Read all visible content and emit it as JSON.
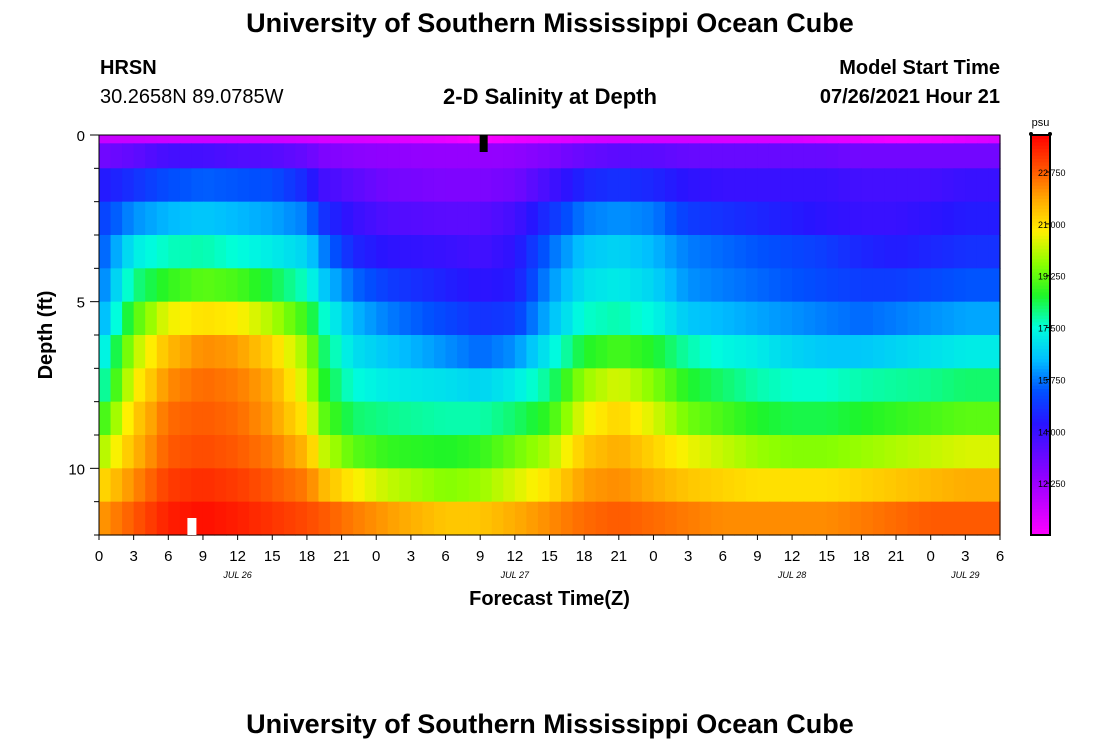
{
  "page": {
    "title_top": "University of Southern Mississippi Ocean Cube",
    "title_bottom": "University of Southern Mississippi Ocean Cube",
    "station": "HRSN",
    "coords": "30.2658N  89.0785W",
    "model_label": "Model Start Time",
    "model_time": "07/26/2021 Hour 21"
  },
  "chart_data": {
    "type": "heatmap",
    "title": "2-D Salinity at Depth",
    "xlabel": "Forecast Time(Z)",
    "ylabel": "Depth (ft)",
    "x_tick_labels": [
      "0",
      "3",
      "6",
      "9",
      "12",
      "15",
      "18",
      "21",
      "0",
      "3",
      "6",
      "9",
      "12",
      "15",
      "18",
      "21",
      "0",
      "3",
      "6",
      "9",
      "12",
      "15",
      "18",
      "21",
      "0",
      "3",
      "6"
    ],
    "x_range_hours": [
      0,
      78
    ],
    "date_labels": [
      {
        "label": "JUL 26",
        "hour": 12
      },
      {
        "label": "JUL 27",
        "hour": 36
      },
      {
        "label": "JUL 28",
        "hour": 60
      },
      {
        "label": "JUL 29",
        "hour": 75
      }
    ],
    "y_tick_labels": [
      "0",
      "5",
      "10"
    ],
    "y_ticks_values": [
      0,
      5,
      10
    ],
    "y_range_ft": [
      0,
      12
    ],
    "depth_levels_ft": [
      0,
      0.5,
      1.5,
      2.5,
      3.5,
      4.5,
      5.5,
      6.5,
      7.5,
      8.5,
      9.5,
      10.5,
      11.5
    ],
    "colorbar": {
      "unit": "psu",
      "min": 10.5,
      "max": 24.0,
      "ticks": [
        "22.750",
        "21.000",
        "19.250",
        "17.500",
        "15.750",
        "14.000",
        "12.250"
      ],
      "tick_values": [
        22.75,
        21.0,
        19.25,
        17.5,
        15.75,
        14.0,
        12.25
      ]
    },
    "markers": [
      {
        "name": "surface-marker",
        "hour": 33.3,
        "color": "#000000"
      },
      {
        "name": "bottom-marker",
        "hour": 8,
        "color": "#ffffff"
      }
    ],
    "salinity_psu_profiles": [
      {
        "hour": 0,
        "values": [
          11.5,
          13.0,
          14.3,
          15.0,
          15.3,
          15.6,
          16.0,
          16.8,
          17.4,
          18.6,
          19.8,
          21.0,
          22.0
        ]
      },
      {
        "hour": 3,
        "values": [
          11.5,
          13.3,
          14.8,
          16.0,
          17.2,
          18.0,
          19.0,
          20.0,
          20.6,
          21.2,
          21.6,
          22.2,
          22.8
        ]
      },
      {
        "hour": 6,
        "values": [
          11.4,
          13.8,
          15.3,
          16.4,
          17.7,
          18.8,
          20.6,
          21.6,
          22.2,
          22.6,
          22.8,
          23.2,
          23.6
        ]
      },
      {
        "hour": 9,
        "values": [
          11.4,
          13.8,
          15.5,
          16.6,
          17.8,
          19.2,
          21.0,
          22.2,
          22.6,
          22.8,
          23.0,
          23.4,
          23.8
        ]
      },
      {
        "hour": 12,
        "values": [
          11.4,
          13.6,
          15.4,
          16.4,
          17.5,
          19.0,
          20.8,
          22.0,
          22.4,
          22.6,
          22.8,
          23.2,
          23.6
        ]
      },
      {
        "hour": 15,
        "values": [
          11.4,
          13.5,
          15.3,
          16.2,
          17.2,
          18.4,
          20.0,
          21.2,
          21.8,
          22.0,
          22.4,
          22.8,
          23.3
        ]
      },
      {
        "hour": 18,
        "values": [
          11.3,
          13.2,
          14.6,
          15.8,
          16.8,
          17.6,
          18.8,
          19.8,
          20.2,
          20.8,
          21.6,
          22.4,
          23.0
        ]
      },
      {
        "hour": 19.5,
        "values": [
          11.2,
          12.8,
          13.8,
          14.8,
          15.8,
          16.6,
          17.6,
          18.2,
          18.6,
          19.2,
          20.2,
          21.6,
          22.8
        ]
      },
      {
        "hour": 22,
        "values": [
          11.2,
          12.6,
          13.4,
          14.0,
          14.6,
          15.6,
          16.4,
          17.0,
          17.5,
          18.2,
          19.2,
          20.8,
          22.4
        ]
      },
      {
        "hour": 25,
        "values": [
          11.1,
          12.5,
          13.0,
          13.6,
          14.2,
          15.0,
          15.8,
          16.6,
          17.2,
          18.0,
          18.8,
          20.2,
          22.0
        ]
      },
      {
        "hour": 30,
        "values": [
          10.9,
          12.4,
          12.8,
          13.4,
          14.0,
          14.5,
          15.2,
          16.0,
          17.0,
          17.8,
          18.6,
          19.6,
          21.4
        ]
      },
      {
        "hour": 33,
        "values": [
          10.6,
          12.4,
          12.8,
          13.4,
          13.8,
          14.2,
          14.8,
          15.6,
          16.8,
          17.8,
          18.8,
          19.8,
          21.4
        ]
      },
      {
        "hour": 36,
        "values": [
          10.8,
          12.5,
          13.0,
          13.8,
          14.2,
          14.4,
          15.0,
          16.0,
          17.2,
          18.2,
          19.4,
          20.4,
          21.8
        ]
      },
      {
        "hour": 39,
        "values": [
          11.0,
          12.8,
          13.8,
          14.8,
          15.6,
          16.0,
          16.4,
          17.2,
          18.0,
          18.8,
          20.0,
          21.0,
          22.2
        ]
      },
      {
        "hour": 42,
        "values": [
          11.2,
          13.2,
          14.6,
          15.8,
          16.6,
          17.0,
          17.6,
          18.6,
          19.8,
          20.6,
          21.4,
          22.0,
          22.6
        ]
      },
      {
        "hour": 45,
        "values": [
          11.3,
          13.4,
          14.8,
          16.0,
          16.8,
          17.2,
          17.8,
          19.0,
          20.4,
          21.2,
          21.8,
          22.2,
          22.8
        ]
      },
      {
        "hour": 48,
        "values": [
          11.3,
          13.4,
          14.6,
          15.8,
          16.4,
          16.8,
          17.4,
          18.6,
          19.6,
          20.4,
          21.2,
          21.8,
          22.6
        ]
      },
      {
        "hour": 51,
        "values": [
          11.3,
          13.2,
          14.2,
          15.0,
          15.8,
          16.0,
          16.6,
          17.8,
          18.6,
          19.4,
          20.6,
          21.4,
          22.4
        ]
      },
      {
        "hour": 54,
        "values": [
          11.2,
          13.2,
          14.0,
          14.8,
          15.6,
          15.8,
          16.4,
          17.4,
          18.2,
          19.0,
          20.2,
          21.2,
          22.2
        ]
      },
      {
        "hour": 57,
        "values": [
          11.2,
          13.2,
          14.0,
          14.6,
          15.4,
          15.6,
          16.2,
          17.2,
          17.8,
          18.6,
          19.8,
          21.0,
          22.2
        ]
      },
      {
        "hour": 60,
        "values": [
          11.2,
          13.2,
          14.0,
          14.4,
          15.2,
          15.4,
          16.0,
          16.8,
          17.6,
          18.4,
          19.6,
          21.0,
          22.2
        ]
      },
      {
        "hour": 63,
        "values": [
          11.0,
          13.2,
          14.0,
          14.2,
          15.0,
          15.2,
          15.8,
          16.6,
          17.6,
          18.4,
          19.6,
          21.0,
          22.2
        ]
      },
      {
        "hour": 66,
        "values": [
          10.9,
          13.0,
          13.8,
          14.0,
          14.6,
          15.0,
          15.6,
          16.6,
          17.8,
          18.6,
          19.8,
          21.2,
          22.4
        ]
      },
      {
        "hour": 69,
        "values": [
          10.7,
          13.0,
          13.8,
          14.0,
          14.4,
          15.0,
          15.8,
          16.8,
          17.9,
          18.8,
          20.0,
          21.4,
          22.6
        ]
      },
      {
        "hour": 72,
        "values": [
          10.8,
          13.0,
          13.8,
          14.2,
          14.6,
          15.2,
          16.0,
          17.0,
          18.0,
          19.0,
          20.2,
          21.6,
          22.8
        ]
      },
      {
        "hour": 75,
        "values": [
          11.0,
          13.0,
          14.0,
          14.4,
          14.8,
          15.4,
          16.2,
          17.2,
          18.2,
          19.2,
          20.4,
          21.8,
          22.8
        ]
      },
      {
        "hour": 78,
        "values": [
          11.2,
          13.0,
          14.0,
          14.4,
          14.8,
          15.4,
          16.2,
          17.2,
          18.2,
          19.2,
          20.4,
          21.8,
          22.8
        ]
      }
    ]
  }
}
